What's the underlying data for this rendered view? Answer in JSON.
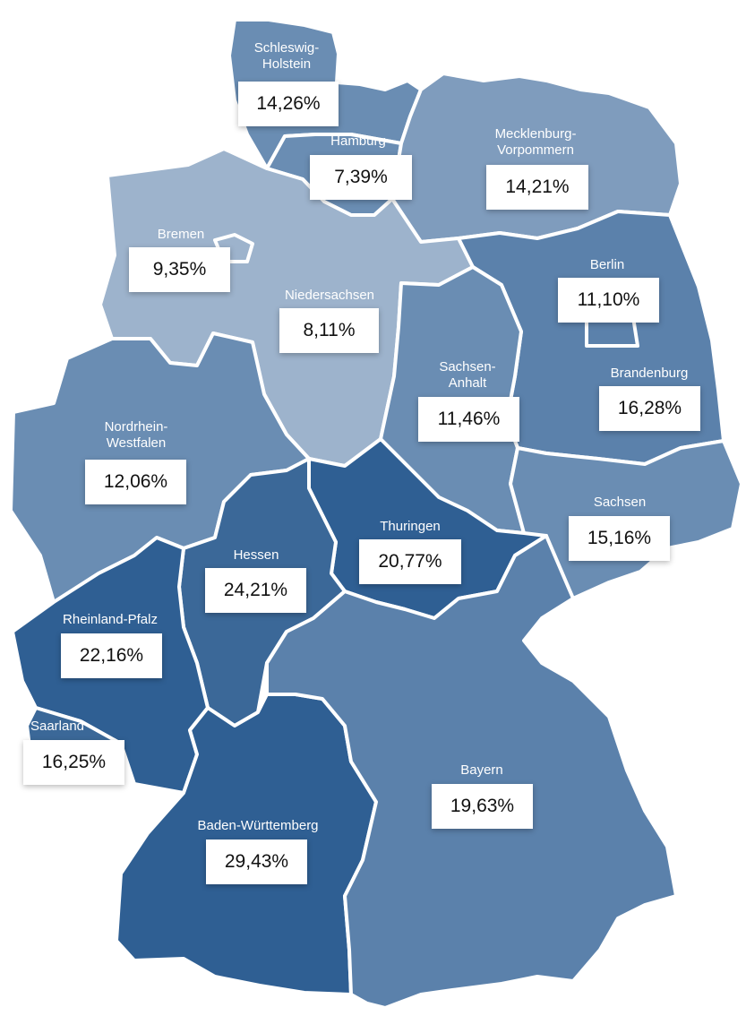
{
  "colors": {
    "tone_1": "#9db3cc",
    "tone_2": "#7f9cbd",
    "tone_3": "#6a8db3",
    "tone_4": "#5b81ab",
    "tone_5": "#3b6898",
    "tone_6": "#2f5f93",
    "border": "#ffffff",
    "label_bg": "#ffffff"
  },
  "states": [
    {
      "id": "schleswig-holstein",
      "name_lines": [
        "Schleswig-",
        "Holstein"
      ],
      "value": "14,26%"
    },
    {
      "id": "hamburg",
      "name_lines": [
        "Hamburg"
      ],
      "value": "7,39%"
    },
    {
      "id": "mecklenburg-vorpommern",
      "name_lines": [
        "Mecklenburg-",
        "Vorpommern"
      ],
      "value": "14,21%"
    },
    {
      "id": "bremen",
      "name_lines": [
        "Bremen"
      ],
      "value": "9,35%"
    },
    {
      "id": "niedersachsen",
      "name_lines": [
        "Niedersachsen"
      ],
      "value": "8,11%"
    },
    {
      "id": "berlin",
      "name_lines": [
        "Berlin"
      ],
      "value": "11,10%"
    },
    {
      "id": "brandenburg",
      "name_lines": [
        "Brandenburg"
      ],
      "value": "16,28%"
    },
    {
      "id": "sachsen-anhalt",
      "name_lines": [
        "Sachsen-",
        "Anhalt"
      ],
      "value": "11,46%"
    },
    {
      "id": "nordrhein-westfalen",
      "name_lines": [
        "Nordrhein-",
        "Westfalen"
      ],
      "value": "12,06%"
    },
    {
      "id": "sachsen",
      "name_lines": [
        "Sachsen"
      ],
      "value": "15,16%"
    },
    {
      "id": "thuringen",
      "name_lines": [
        "Thuringen"
      ],
      "value": "20,77%"
    },
    {
      "id": "hessen",
      "name_lines": [
        "Hessen"
      ],
      "value": "24,21%"
    },
    {
      "id": "rheinland-pfalz",
      "name_lines": [
        "Rheinland-Pfalz"
      ],
      "value": "22,16%"
    },
    {
      "id": "saarland",
      "name_lines": [
        "Saarland"
      ],
      "value": "16,25%"
    },
    {
      "id": "bayern",
      "name_lines": [
        "Bayern"
      ],
      "value": "19,63%"
    },
    {
      "id": "baden-wurttemberg",
      "name_lines": [
        "Baden-Württemberg"
      ],
      "value": "29,43%"
    }
  ]
}
